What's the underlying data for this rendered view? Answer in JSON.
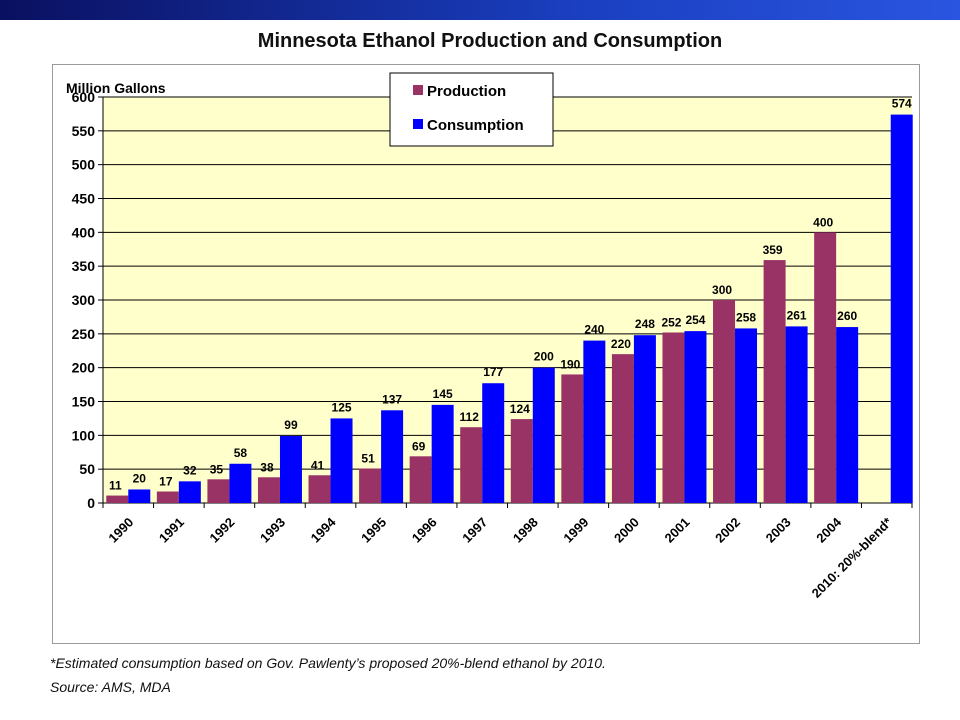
{
  "chart_data": {
    "type": "bar",
    "title": "Minnesota Ethanol Production and Consumption",
    "ylabel": "Million Gallons",
    "xlabel": "",
    "ylim": [
      0,
      600
    ],
    "yticks": [
      0,
      50,
      100,
      150,
      200,
      250,
      300,
      350,
      400,
      450,
      500,
      550,
      600
    ],
    "categories": [
      "1990",
      "1991",
      "1992",
      "1993",
      "1994",
      "1995",
      "1996",
      "1997",
      "1998",
      "1999",
      "2000",
      "2001",
      "2002",
      "2003",
      "2004",
      "2010: 20%-blend*"
    ],
    "series": [
      {
        "name": "Production",
        "color": "#993366",
        "values": [
          11,
          17,
          35,
          38,
          41,
          51,
          69,
          112,
          124,
          190,
          220,
          252,
          300,
          359,
          400,
          null
        ]
      },
      {
        "name": "Consumption",
        "color": "#0000ff",
        "values": [
          20,
          32,
          58,
          99,
          125,
          137,
          145,
          177,
          200,
          240,
          248,
          254,
          258,
          261,
          260,
          574
        ]
      }
    ],
    "legend": "top-center",
    "grid": true,
    "plot_background": "#ffffcc"
  },
  "footnotes": {
    "note": "*Estimated consumption based on Gov. Pawlenty’s proposed 20%-blend ethanol by 2010.",
    "source": "Source: AMS, MDA"
  }
}
